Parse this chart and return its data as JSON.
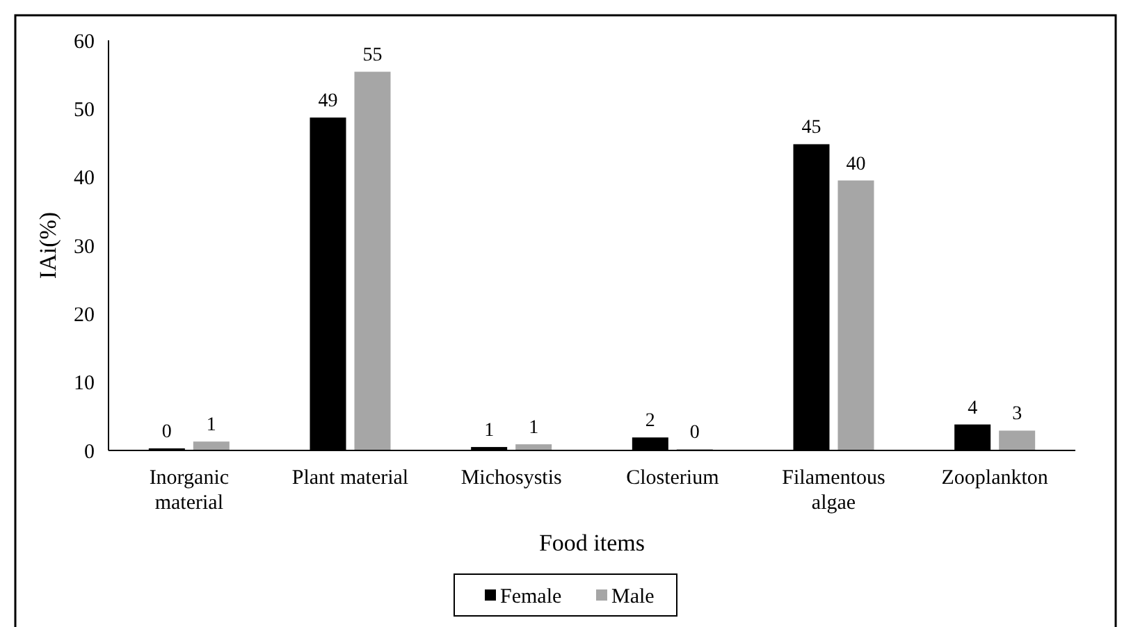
{
  "chart_data": {
    "type": "bar",
    "xlabel": "Food items",
    "ylabel": "IAi(%)",
    "categories": [
      "Inorganic material",
      "Plant material",
      "Michosystis",
      "Closterium",
      "Filamentous algae",
      "Zooplankton"
    ],
    "series": [
      {
        "name": "Female",
        "color": "#000000",
        "values": [
          0.3,
          48.7,
          0.5,
          1.9,
          44.8,
          3.8
        ],
        "value_labels": [
          "0",
          "49",
          "1",
          "2",
          "45",
          "4"
        ]
      },
      {
        "name": "Male",
        "color": "#a6a6a6",
        "values": [
          1.3,
          55.4,
          0.9,
          0.2,
          39.5,
          2.9
        ],
        "value_labels": [
          "1",
          "55",
          "1",
          "0",
          "40",
          "3"
        ]
      }
    ],
    "ylim": [
      0,
      60
    ],
    "yticks": [
      0,
      10,
      20,
      30,
      40,
      50,
      60
    ],
    "legend": "bottom",
    "grid": false
  }
}
